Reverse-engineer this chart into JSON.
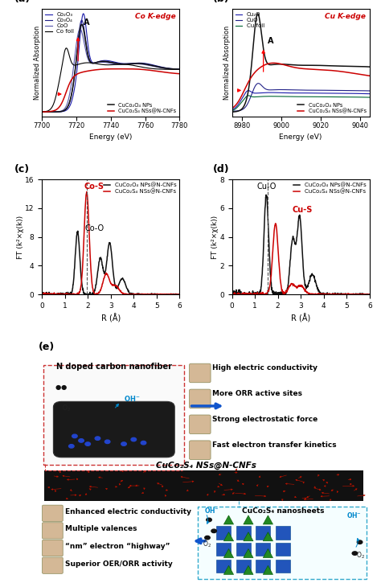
{
  "fig_width": 4.74,
  "fig_height": 7.25,
  "dpi": 100,
  "panel_a": {
    "title": "Co K-edge",
    "title_color": "#cc0000",
    "xlabel": "Energy (eV)",
    "ylabel": "Normalized Absorption",
    "xlim": [
      7700,
      7780
    ],
    "xticks": [
      7700,
      7720,
      7740,
      7760,
      7780
    ],
    "legend_main": [
      "CuCo₂O₄ NPs",
      "CuCo₂S₄ NSs@N-CNFs"
    ],
    "legend_ref": [
      "Co₂O₃",
      "Co₃O₄",
      "CoO",
      "Co foil"
    ],
    "ref_colors": [
      "#1a1aaa",
      "#222288",
      "#5555aa",
      "#000000"
    ],
    "main_colors": [
      "#111111",
      "#cc0000"
    ]
  },
  "panel_b": {
    "title": "Cu K-edge",
    "title_color": "#cc0000",
    "xlabel": "Energy (eV)",
    "ylabel": "Normalized Absorption",
    "xlim": [
      8975,
      9045
    ],
    "xticks": [
      8980,
      9000,
      9020,
      9040
    ],
    "legend_main": [
      "CuCo₂O₄ NPs",
      "CuCo₂S₄ NSs@N-CNFs"
    ],
    "legend_ref": [
      "Cu₂O",
      "CuO",
      "Cu foil"
    ],
    "ref_colors": [
      "#1a1aaa",
      "#222288",
      "#006633"
    ],
    "main_colors": [
      "#111111",
      "#cc0000"
    ]
  },
  "panel_c": {
    "xlabel": "R (Å)",
    "ylabel": "FT (k²×χ(k))",
    "xlim": [
      0,
      6
    ],
    "ylim": [
      0,
      16
    ],
    "yticks": [
      0,
      4,
      8,
      12,
      16
    ],
    "xticks": [
      0,
      1,
      2,
      3,
      4,
      5,
      6
    ],
    "legend": [
      "CuCo₂O₄ NPs@N-CNFs",
      "CuCo₂S₄ NSs@N-CNFs"
    ],
    "colors": [
      "#111111",
      "#cc0000"
    ],
    "label_CoO": "Co-O",
    "label_CoS": "Co-S",
    "dashed_x": 1.95
  },
  "panel_d": {
    "xlabel": "R (Å)",
    "ylabel": "FT (k²×χ(k))",
    "xlim": [
      0,
      6
    ],
    "ylim": [
      0,
      8
    ],
    "yticks": [
      0,
      2,
      4,
      6,
      8
    ],
    "xticks": [
      0,
      1,
      2,
      3,
      4,
      5,
      6
    ],
    "legend": [
      "CuCo₂O₄ NPs@N-CNFs",
      "CuCo₂S₄ NSs@N-CNFs"
    ],
    "colors": [
      "#111111",
      "#cc0000"
    ],
    "label_CuO": "Cu-O",
    "label_CuS": "Cu-S",
    "dashed_x": 1.55
  },
  "panel_e": {
    "top_box_title": "N doped carbon nanofiber",
    "center_title": "CuCo₂S₄ NSs@N-CNFs",
    "bottom_right_title": "CuCo₂S₄ nanosheets",
    "right_list": [
      "High electric conductivity",
      "More ORR active sites",
      "Strong electrostatic force",
      "Fast electron transfer kinetics"
    ],
    "left_list": [
      "Enhanced electric conductivity",
      "Multiple valences",
      "“nm” electron “highway”",
      "Superior OER/ORR activity"
    ]
  }
}
